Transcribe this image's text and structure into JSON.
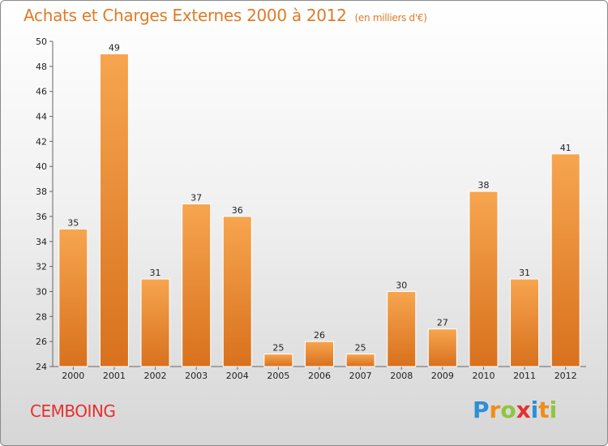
{
  "header": {
    "title": "Achats et Charges Externes 2000 à 2012",
    "unit": "(en milliers d'€)"
  },
  "footer": {
    "commune": "CEMBOING",
    "logo_letters": [
      "P",
      "r",
      "o",
      "x",
      "i",
      "t",
      "i"
    ],
    "logo_colors": [
      "#2e8fd6",
      "#f08c1a",
      "#8dc63f",
      "#e4312e",
      "#2e8fd6",
      "#f08c1a",
      "#8dc63f"
    ]
  },
  "chart_data": {
    "type": "bar",
    "categories": [
      "2000",
      "2001",
      "2002",
      "2003",
      "2004",
      "2005",
      "2006",
      "2007",
      "2008",
      "2009",
      "2010",
      "2011",
      "2012"
    ],
    "values": [
      35,
      49,
      31,
      37,
      36,
      25,
      26,
      25,
      30,
      27,
      38,
      31,
      41
    ],
    "title": "Achats et Charges Externes 2000 à 2012",
    "ylim": [
      24,
      50
    ],
    "yticks": [
      24,
      26,
      28,
      30,
      32,
      34,
      36,
      38,
      40,
      42,
      44,
      46,
      48,
      50
    ],
    "grid": false,
    "bar_color_light": "#f7a54f",
    "bar_color_dark": "#d8711d"
  }
}
